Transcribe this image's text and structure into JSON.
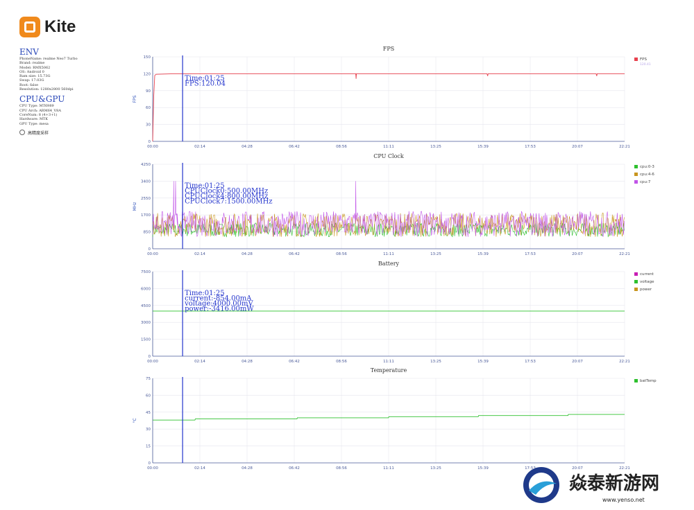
{
  "app": {
    "logo_text": "Kite"
  },
  "env": {
    "title": "ENV",
    "rows": [
      "PhoneName: realme Neo7 Turbo",
      "Brand: realme",
      "Model: RMX5062",
      "OS: Android 0",
      "Ram size: 15.73G",
      "Swap: 17.03G",
      "Root: false",
      "Resolution: 1280x2800 560dpi"
    ]
  },
  "cpu_gpu": {
    "title": "CPU&GPU",
    "rows": [
      "CPU Type: MT6989",
      "CPU Arch: ARM64_V8A",
      "CoreNum: 8 (4+3+1)",
      "Hardware: MTK",
      "GPU Type: mesa"
    ],
    "option_label": "高精度采样"
  },
  "colors": {
    "fps": "#e8414e",
    "cpu03": "#2ec02e",
    "cpu46": "#c8951e",
    "cpu7": "#c154e8",
    "current": "#c81eb4",
    "voltage": "#2ec02e",
    "power": "#c8951e",
    "cursor": "#2233cc"
  },
  "watermark": {
    "text": "焱泰新游网",
    "url": "www.yenso.net"
  },
  "chart_data": [
    {
      "type": "line",
      "title": "FPS",
      "ylabel": "FPS",
      "ylim": [
        0,
        150
      ],
      "yticks": [
        "0",
        "30",
        "60",
        "90",
        "120",
        "150"
      ],
      "xticks": [
        "00:00",
        "02:14",
        "04:28",
        "06:42",
        "08:56",
        "11:11",
        "13:25",
        "15:39",
        "17:53",
        "20:07",
        "22:21"
      ],
      "xlim_seconds": [
        0,
        1341
      ],
      "cursor": {
        "time": "Time:01:25",
        "lines": [
          "FPS:120.04"
        ]
      },
      "series": [
        {
          "name": "FPS",
          "subname": "120.41",
          "color": "#e8414e",
          "points": [
            [
              0,
              0
            ],
            [
              3,
              80
            ],
            [
              6,
              117
            ],
            [
              10,
              119
            ],
            [
              60,
              120
            ],
            [
              300,
              120
            ],
            [
              577,
              120
            ],
            [
              578,
              111
            ],
            [
              579,
              120
            ],
            [
              700,
              120
            ],
            [
              950,
              120
            ],
            [
              952,
              116
            ],
            [
              953,
              120
            ],
            [
              1200,
              120
            ],
            [
              1260,
              120
            ],
            [
              1262,
              116
            ],
            [
              1263,
              120
            ],
            [
              1330,
              120
            ],
            [
              1341,
              120
            ]
          ]
        }
      ]
    },
    {
      "type": "line",
      "title": "CPU Clock",
      "ylabel": "MHz",
      "ylim": [
        0,
        4250
      ],
      "yticks": [
        "0",
        "850",
        "1700",
        "2550",
        "3400",
        "4250"
      ],
      "xticks": [
        "00:00",
        "02:14",
        "04:28",
        "06:42",
        "08:56",
        "11:11",
        "13:25",
        "15:39",
        "17:53",
        "20:07",
        "22:21"
      ],
      "xlim_seconds": [
        0,
        1341
      ],
      "cursor": {
        "time": "Time:01:25",
        "lines": [
          "CPUClock0:500.00MHz",
          "CPUClock4:800.00MHz",
          "CPUClock7:1500.00MHz"
        ]
      },
      "series": [
        {
          "name": "cpu:0-3",
          "color": "#2ec02e",
          "base": 950,
          "spread": 350
        },
        {
          "name": "cpu:4-6",
          "color": "#c8951e",
          "base": 1200,
          "spread": 600
        },
        {
          "name": "cpu:7",
          "color": "#c154e8",
          "base": 1250,
          "spread": 650
        }
      ]
    },
    {
      "type": "line",
      "title": "Battery",
      "ylabel": "",
      "ylim": [
        0,
        7500
      ],
      "yticks": [
        "0",
        "1500",
        "3000",
        "4500",
        "6000",
        "7500"
      ],
      "xticks": [
        "00:00",
        "02:14",
        "04:28",
        "06:42",
        "08:56",
        "11:11",
        "13:25",
        "15:39",
        "17:53",
        "20:07",
        "22:21"
      ],
      "xlim_seconds": [
        0,
        1341
      ],
      "cursor": {
        "time": "Time:01:25",
        "lines": [
          "current:-854.00mA",
          "voltage:4000.00mV",
          "power:-3416.00mW"
        ]
      },
      "series": [
        {
          "name": "current",
          "color": "#c81eb4",
          "points": []
        },
        {
          "name": "voltage",
          "color": "#2ec02e",
          "points": [
            [
              0,
              4000
            ],
            [
              1341,
              4000
            ]
          ]
        },
        {
          "name": "power",
          "color": "#c8951e",
          "points": []
        }
      ]
    },
    {
      "type": "line",
      "title": "Temperature",
      "ylabel": "°C",
      "ylim": [
        0,
        75
      ],
      "yticks": [
        "0",
        "15",
        "30",
        "45",
        "60",
        "75"
      ],
      "xticks": [
        "00:00",
        "02:14",
        "04:28",
        "06:42",
        "08:56",
        "11:11",
        "13:25",
        "15:39",
        "17:53",
        "20:07",
        "22:21"
      ],
      "xlim_seconds": [
        0,
        1341
      ],
      "cursor": null,
      "series": [
        {
          "name": "batTemp",
          "color": "#2ec02e",
          "points": [
            [
              0,
              38
            ],
            [
              120,
              38
            ],
            [
              121,
              39
            ],
            [
              410,
              39
            ],
            [
              411,
              40
            ],
            [
              670,
              40
            ],
            [
              671,
              41
            ],
            [
              925,
              41
            ],
            [
              926,
              42
            ],
            [
              1180,
              42
            ],
            [
              1181,
              43
            ],
            [
              1341,
              43
            ]
          ]
        }
      ]
    }
  ]
}
